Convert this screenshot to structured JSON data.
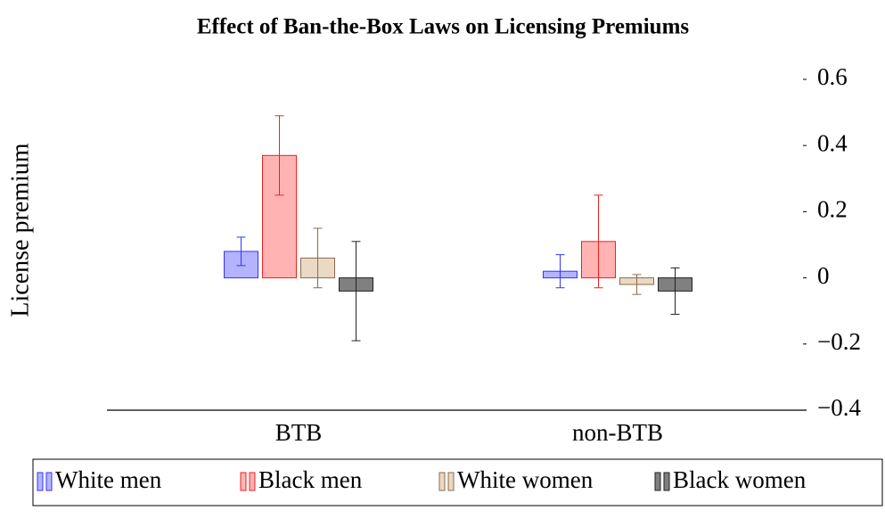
{
  "chart_data": {
    "type": "bar",
    "title": "Effect of Ban-the-Box Laws on Licensing Premiums",
    "y_label": "License premium",
    "categories": [
      "BTB",
      "non-BTB"
    ],
    "series": [
      {
        "name": "White men",
        "color": "#b3b3ff",
        "edge": "#3333ff",
        "values": [
          0.08,
          0.02
        ],
        "errors": [
          0.043,
          0.05
        ]
      },
      {
        "name": "Black men",
        "color": "#ffb3b3",
        "edge": "#ee2222",
        "values": [
          0.37,
          0.11
        ],
        "errors": [
          0.12,
          0.14
        ]
      },
      {
        "name": "White women",
        "color": "#ead9c5",
        "edge": "#8b6a4a",
        "values": [
          0.06,
          -0.02
        ],
        "errors": [
          0.09,
          0.03
        ]
      },
      {
        "name": "Black women",
        "color": "#808080",
        "edge": "#222222",
        "values": [
          -0.04,
          -0.04
        ],
        "errors": [
          0.15,
          0.07
        ]
      }
    ],
    "ylim": [
      -0.4,
      0.6
    ],
    "yticks": [
      {
        "value": -0.4,
        "label": "−0.4"
      },
      {
        "value": -0.2,
        "label": "−0.2"
      },
      0,
      0.2,
      0.4,
      0.6
    ],
    "y_axis_side": "right",
    "grid": false,
    "legend": "bottom"
  }
}
